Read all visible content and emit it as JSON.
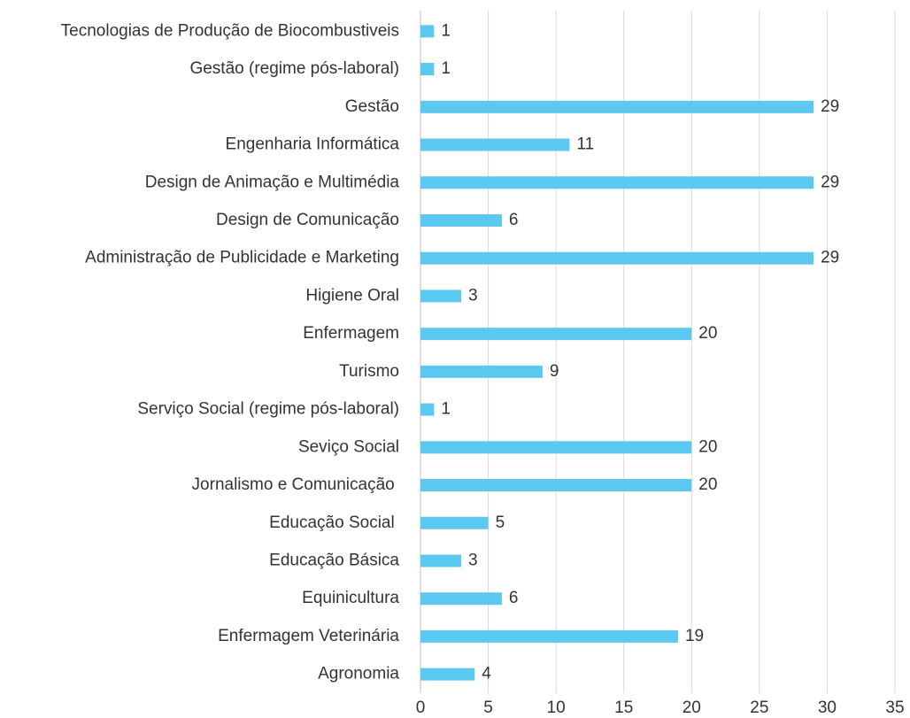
{
  "chart_data": {
    "type": "barh",
    "categories": [
      "Tecnologias de Produção de Biocombustiveis",
      "Gestão (regime pós-laboral)",
      "Gestão",
      "Engenharia Informática",
      "Design de Animação e Multimédia",
      "Design de Comunicação",
      "Administração de Publicidade e Marketing",
      "Higiene Oral",
      "Enfermagem",
      "Turismo",
      "Serviço Social (regime pós-laboral)",
      "Seviço Social",
      "Jornalismo e Comunicação ",
      "Educação Social ",
      "Educação Básica",
      "Equinicultura",
      "Enfermagem Veterinária",
      "Agronomia"
    ],
    "values": [
      1,
      1,
      29,
      11,
      29,
      6,
      29,
      3,
      20,
      9,
      1,
      20,
      20,
      5,
      3,
      6,
      19,
      4
    ],
    "color": "#5bc8f0",
    "xlim": [
      0,
      35
    ],
    "xticks": [
      0,
      5,
      10,
      15,
      20,
      25,
      30,
      35
    ],
    "grid": true
  }
}
